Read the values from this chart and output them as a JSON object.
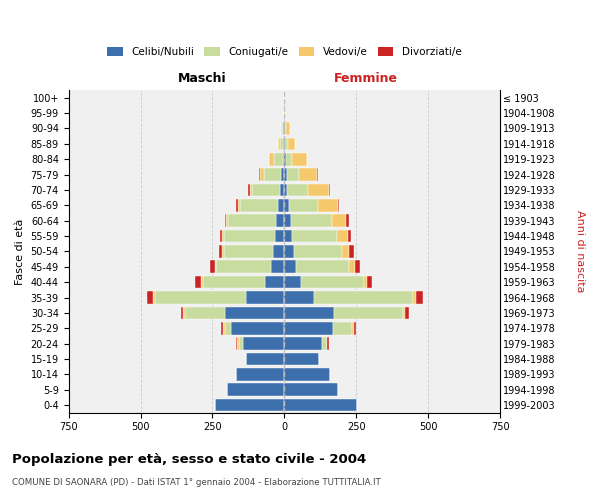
{
  "age_groups": [
    "100+",
    "95-99",
    "90-94",
    "85-89",
    "80-84",
    "75-79",
    "70-74",
    "65-69",
    "60-64",
    "55-59",
    "50-54",
    "45-49",
    "40-44",
    "35-39",
    "30-34",
    "25-29",
    "20-24",
    "15-19",
    "10-14",
    "5-9",
    "0-4"
  ],
  "birth_years": [
    "≤ 1903",
    "1904-1908",
    "1909-1913",
    "1914-1918",
    "1919-1923",
    "1924-1928",
    "1929-1933",
    "1934-1938",
    "1939-1943",
    "1944-1948",
    "1949-1953",
    "1954-1958",
    "1959-1963",
    "1964-1968",
    "1969-1973",
    "1974-1978",
    "1979-1983",
    "1984-1988",
    "1989-1993",
    "1994-1998",
    "1999-2003"
  ],
  "maschi": {
    "celibi": [
      1,
      1,
      3,
      3,
      5,
      10,
      15,
      22,
      28,
      32,
      38,
      48,
      68,
      135,
      205,
      185,
      145,
      132,
      168,
      198,
      242
    ],
    "coniugati": [
      0,
      0,
      6,
      12,
      32,
      62,
      98,
      133,
      168,
      178,
      172,
      188,
      215,
      315,
      142,
      22,
      12,
      0,
      0,
      0,
      0
    ],
    "vedovi": [
      0,
      0,
      4,
      6,
      16,
      12,
      6,
      6,
      6,
      6,
      6,
      6,
      6,
      6,
      6,
      6,
      6,
      0,
      0,
      0,
      0
    ],
    "divorziati": [
      0,
      0,
      0,
      0,
      0,
      4,
      6,
      6,
      6,
      9,
      11,
      16,
      22,
      22,
      6,
      6,
      6,
      0,
      0,
      0,
      0
    ]
  },
  "femmine": {
    "nubili": [
      0,
      0,
      2,
      3,
      5,
      10,
      10,
      15,
      22,
      26,
      32,
      42,
      58,
      102,
      172,
      168,
      132,
      122,
      158,
      188,
      252
    ],
    "coniugate": [
      0,
      0,
      3,
      9,
      22,
      42,
      72,
      102,
      142,
      158,
      168,
      182,
      218,
      345,
      242,
      68,
      16,
      0,
      0,
      0,
      0
    ],
    "vedove": [
      0,
      2,
      16,
      26,
      52,
      62,
      72,
      68,
      52,
      36,
      26,
      22,
      12,
      12,
      6,
      6,
      0,
      0,
      0,
      0,
      0
    ],
    "divorziate": [
      0,
      0,
      0,
      0,
      0,
      4,
      6,
      6,
      9,
      11,
      16,
      16,
      16,
      22,
      12,
      6,
      6,
      0,
      0,
      0,
      0
    ]
  },
  "colors": {
    "celibi": "#3d6fad",
    "coniugati": "#c8dca0",
    "vedovi": "#f5c96b",
    "divorziati": "#cc2222"
  },
  "xlim": 750,
  "title": "Popolazione per età, sesso e stato civile - 2004",
  "subtitle": "COMUNE DI SAONARA (PD) - Dati ISTAT 1° gennaio 2004 - Elaborazione TUTTITALIA.IT",
  "ylabel_left": "Fasce di età",
  "ylabel_right": "Anni di nascita",
  "xlabel_left": "Maschi",
  "xlabel_right": "Femmine",
  "legend_labels": [
    "Celibi/Nubili",
    "Coniugati/e",
    "Vedovi/e",
    "Divorziati/e"
  ],
  "bg_color": "#f0f0f0",
  "grid_color": "#cccccc"
}
